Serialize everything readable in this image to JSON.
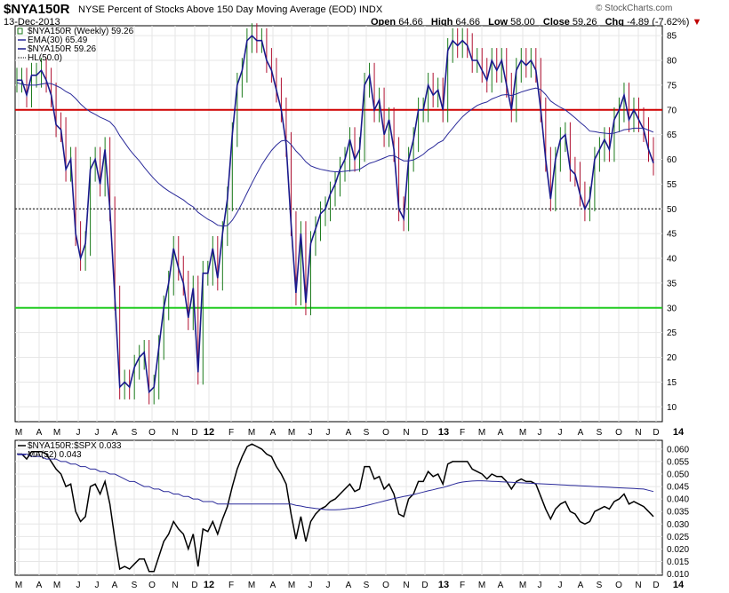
{
  "header": {
    "symbol": "$NYA150R",
    "description": "NYSE Percent of Stocks Above 150 Day Moving Average (EOD)",
    "exchange": "INDX",
    "date": "13-Dec-2013",
    "brand": "© StockCharts.com",
    "open_label": "Open",
    "open": "64.66",
    "high_label": "High",
    "high": "64.66",
    "low_label": "Low",
    "low": "58.00",
    "close_label": "Close",
    "close": "59.26",
    "chg_label": "Chg",
    "chg": "-4.89 (-7.62%)",
    "chg_arrow": "▼"
  },
  "colors": {
    "price_line": "#1a1a8c",
    "up_bar": "#1a7a1a",
    "down_bar": "#b01030",
    "ema": "#2a2a9a",
    "line70": "#d00000",
    "line30": "#22cc22",
    "ratio_line": "#000000",
    "ratio_ma": "#2a2a9a",
    "grid": "#e6e6e6"
  },
  "chart_data": [
    {
      "type": "line",
      "title": "$NYA150R (Weekly) 59.26",
      "legend": [
        "$NYA150R (Weekly) 59.26",
        "EMA(30) 65.49",
        "$NYA150R 59.26",
        "HL(50.0)"
      ],
      "x_labels": [
        "M",
        "A",
        "M",
        "J",
        "J",
        "A",
        "S",
        "O",
        "N",
        "D",
        "12",
        "F",
        "M",
        "A",
        "M",
        "J",
        "J",
        "A",
        "S",
        "O",
        "N",
        "D",
        "13",
        "F",
        "M",
        "A",
        "M",
        "J",
        "J",
        "A",
        "S",
        "O",
        "N",
        "D",
        "14"
      ],
      "ylim": [
        7,
        87
      ],
      "y_ticks": [
        10,
        15,
        20,
        25,
        30,
        35,
        40,
        45,
        50,
        55,
        60,
        65,
        70,
        75,
        80,
        85
      ],
      "reference_lines": [
        70,
        50,
        30
      ],
      "grid": true,
      "series": [
        {
          "name": "$NYA150R",
          "values": [
            76,
            76,
            73,
            77,
            77,
            78,
            76,
            73,
            67,
            66,
            58,
            60,
            45,
            40,
            43,
            58,
            60,
            55,
            62,
            50,
            32,
            14,
            15,
            14,
            18,
            20,
            21,
            13,
            14,
            22,
            30,
            35,
            42,
            38,
            35,
            28,
            34,
            17,
            37,
            37,
            42,
            36,
            45,
            52,
            65,
            75,
            78,
            84,
            85,
            84,
            84,
            80,
            78,
            74,
            70,
            63,
            47,
            33,
            45,
            31,
            43,
            46,
            49,
            50,
            53,
            55,
            58,
            60,
            64,
            60,
            62,
            75,
            77,
            70,
            72,
            65,
            68,
            62,
            50,
            48,
            60,
            64,
            70,
            70,
            75,
            73,
            74,
            70,
            82,
            84,
            83,
            84,
            83,
            80,
            80,
            78,
            76,
            80,
            78,
            80,
            75,
            70,
            78,
            80,
            79,
            80,
            78,
            70,
            60,
            52,
            60,
            64,
            65,
            58,
            57,
            53,
            50,
            52,
            60,
            62,
            64,
            62,
            68,
            70,
            73,
            68,
            70,
            68,
            66,
            62,
            59.26
          ]
        },
        {
          "name": "EMA(30)",
          "values": [
            75.5,
            75.2,
            75.0,
            75.0,
            75.0,
            75.2,
            75.4,
            75.3,
            74.9,
            74.4,
            73.7,
            73.2,
            72.3,
            71.2,
            70.3,
            69.6,
            69.1,
            68.5,
            68.1,
            67.6,
            66.5,
            64.8,
            63.4,
            62.0,
            60.8,
            59.7,
            58.4,
            57.2,
            56.1,
            55.1,
            54.3,
            53.6,
            53.0,
            52.4,
            51.8,
            51.0,
            50.4,
            49.3,
            48.6,
            47.9,
            47.4,
            46.7,
            46.5,
            46.6,
            47.7,
            49.3,
            51.2,
            53.2,
            55.2,
            57.1,
            58.9,
            60.4,
            61.8,
            62.9,
            63.7,
            63.9,
            63.0,
            61.7,
            60.7,
            59.5,
            58.7,
            58.3,
            58.0,
            57.8,
            57.6,
            57.5,
            57.5,
            57.6,
            57.7,
            57.8,
            58.0,
            58.6,
            59.2,
            59.5,
            59.9,
            60.3,
            60.7,
            60.8,
            60.2,
            59.7,
            59.7,
            59.9,
            60.4,
            61.0,
            61.9,
            62.5,
            63.3,
            63.8,
            65.1,
            66.3,
            67.5,
            68.6,
            69.5,
            70.2,
            70.9,
            71.3,
            71.6,
            72.2,
            72.6,
            73.0,
            73.1,
            72.9,
            73.2,
            73.6,
            73.9,
            74.2,
            74.4,
            74.1,
            73.1,
            71.8,
            71.1,
            70.5,
            70.0,
            69.2,
            68.4,
            67.5,
            66.7,
            65.7,
            65.6,
            65.4,
            65.3,
            65.2,
            65.3,
            65.6,
            66.0,
            66.1,
            66.3,
            66.3,
            66.3,
            65.9,
            65.49
          ]
        }
      ]
    },
    {
      "type": "line",
      "title": "$NYA150R:$SPX 0.033",
      "legend": [
        "$NYA150R:$SPX 0.033",
        "MA(52) 0.043"
      ],
      "x_labels": [
        "M",
        "A",
        "M",
        "J",
        "J",
        "A",
        "S",
        "O",
        "N",
        "D",
        "12",
        "F",
        "M",
        "A",
        "M",
        "J",
        "J",
        "A",
        "S",
        "O",
        "N",
        "D",
        "13",
        "F",
        "M",
        "A",
        "M",
        "J",
        "J",
        "A",
        "S",
        "O",
        "N",
        "D",
        "14"
      ],
      "ylim": [
        0.0095,
        0.0635
      ],
      "y_ticks": [
        "0.010",
        "0.015",
        "0.020",
        "0.025",
        "0.030",
        "0.035",
        "0.040",
        "0.045",
        "0.050",
        "0.055",
        "0.060"
      ],
      "grid": true,
      "series": [
        {
          "name": "$NYA150R:$SPX",
          "values": [
            0.058,
            0.058,
            0.056,
            0.059,
            0.059,
            0.059,
            0.058,
            0.055,
            0.052,
            0.05,
            0.045,
            0.046,
            0.035,
            0.031,
            0.033,
            0.045,
            0.046,
            0.042,
            0.047,
            0.038,
            0.024,
            0.012,
            0.013,
            0.012,
            0.014,
            0.016,
            0.016,
            0.011,
            0.011,
            0.017,
            0.023,
            0.026,
            0.031,
            0.028,
            0.026,
            0.02,
            0.026,
            0.013,
            0.028,
            0.027,
            0.031,
            0.026,
            0.032,
            0.037,
            0.045,
            0.052,
            0.057,
            0.061,
            0.062,
            0.061,
            0.06,
            0.058,
            0.057,
            0.053,
            0.05,
            0.046,
            0.034,
            0.024,
            0.033,
            0.023,
            0.031,
            0.034,
            0.036,
            0.037,
            0.039,
            0.04,
            0.042,
            0.044,
            0.046,
            0.043,
            0.044,
            0.053,
            0.053,
            0.048,
            0.049,
            0.044,
            0.046,
            0.042,
            0.034,
            0.033,
            0.04,
            0.042,
            0.047,
            0.047,
            0.051,
            0.049,
            0.05,
            0.046,
            0.054,
            0.055,
            0.055,
            0.055,
            0.055,
            0.052,
            0.051,
            0.05,
            0.048,
            0.05,
            0.049,
            0.049,
            0.047,
            0.044,
            0.047,
            0.048,
            0.047,
            0.047,
            0.046,
            0.041,
            0.036,
            0.032,
            0.036,
            0.038,
            0.039,
            0.035,
            0.034,
            0.031,
            0.03,
            0.031,
            0.035,
            0.036,
            0.037,
            0.036,
            0.039,
            0.04,
            0.042,
            0.038,
            0.039,
            0.038,
            0.037,
            0.035,
            0.033
          ]
        },
        {
          "name": "MA(52)",
          "values": [
            0.058,
            0.058,
            0.058,
            0.057,
            0.057,
            0.057,
            0.056,
            0.056,
            0.056,
            0.055,
            0.055,
            0.054,
            0.054,
            0.053,
            0.053,
            0.052,
            0.052,
            0.051,
            0.051,
            0.05,
            0.05,
            0.049,
            0.048,
            0.047,
            0.047,
            0.046,
            0.045,
            0.045,
            0.044,
            0.044,
            0.043,
            0.043,
            0.042,
            0.042,
            0.041,
            0.041,
            0.04,
            0.04,
            0.039,
            0.039,
            0.039,
            0.038,
            0.038,
            0.038,
            0.038,
            0.038,
            0.038,
            0.038,
            0.038,
            0.038,
            0.038,
            0.038,
            0.038,
            0.038,
            0.038,
            0.038,
            0.038,
            0.0375,
            0.0372,
            0.0368,
            0.0365,
            0.0362,
            0.036,
            0.0358,
            0.0357,
            0.0357,
            0.0358,
            0.036,
            0.0362,
            0.0364,
            0.0368,
            0.0372,
            0.0377,
            0.0382,
            0.0387,
            0.0392,
            0.0397,
            0.0402,
            0.0406,
            0.041,
            0.0414,
            0.0418,
            0.0423,
            0.0428,
            0.0433,
            0.0437,
            0.0442,
            0.0446,
            0.0452,
            0.0458,
            0.0464,
            0.0468,
            0.047,
            0.0472,
            0.0473,
            0.0473,
            0.0472,
            0.0471,
            0.047,
            0.0469,
            0.0468,
            0.0467,
            0.0466,
            0.0465,
            0.0464,
            0.0463,
            0.0462,
            0.0461,
            0.046,
            0.0459,
            0.0458,
            0.0457,
            0.0456,
            0.0455,
            0.0454,
            0.0453,
            0.0452,
            0.0451,
            0.045,
            0.0449,
            0.0448,
            0.0447,
            0.0446,
            0.0445,
            0.0444,
            0.0443,
            0.0442,
            0.0441,
            0.044,
            0.0435,
            0.043
          ]
        }
      ]
    }
  ]
}
